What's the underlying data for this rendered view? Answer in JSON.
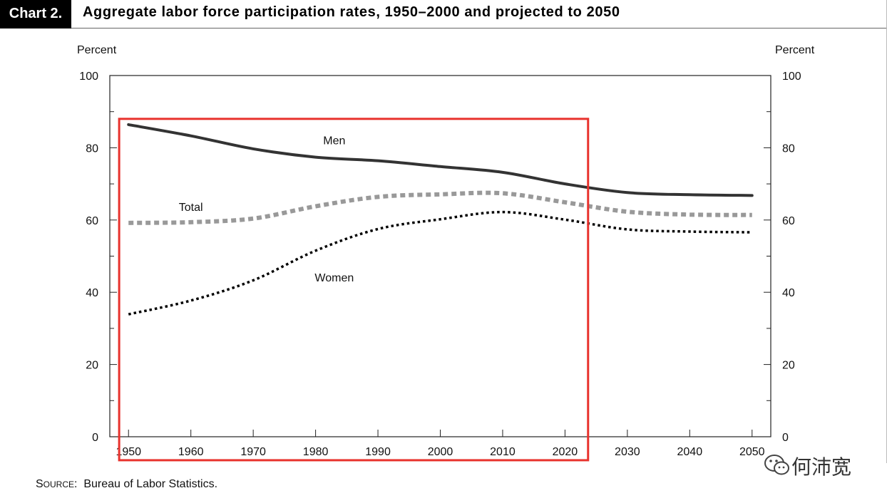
{
  "header": {
    "chart_label": "Chart 2.",
    "title": "Aggregate labor force participation rates, 1950–2000 and projected to 2050"
  },
  "source": {
    "label_first": "S",
    "label_rest": "OURCE",
    "colon": ":",
    "text": "Bureau of Labor Statistics."
  },
  "watermark": {
    "text": "何沛宽",
    "icon": "wechat-icon"
  },
  "chart_data": {
    "type": "line",
    "title": "Aggregate labor force participation rates, 1950–2000 and projected to 2050",
    "ylabel_left": "Percent",
    "ylabel_right": "Percent",
    "xlabel": "",
    "x": [
      1950,
      1960,
      1970,
      1980,
      1990,
      2000,
      2010,
      2020,
      2030,
      2040,
      2050
    ],
    "x_tick_labels": [
      "1950",
      "1960",
      "1970",
      "1980",
      "1990",
      "2000",
      "2010",
      "2020",
      "2030",
      "2040",
      "2050"
    ],
    "xlim": [
      1947,
      2053
    ],
    "ylim": [
      0,
      100
    ],
    "y_ticks": [
      0,
      20,
      40,
      60,
      80,
      100
    ],
    "y_tick_labels": [
      "0",
      "20",
      "40",
      "60",
      "80",
      "100"
    ],
    "series": [
      {
        "name": "Men",
        "style": "solid",
        "color": "#333333",
        "values": [
          86.4,
          83.3,
          79.7,
          77.4,
          76.4,
          74.8,
          73.2,
          70.0,
          67.6,
          67.0,
          66.8
        ]
      },
      {
        "name": "Total",
        "style": "dashed",
        "color": "#999999",
        "values": [
          59.2,
          59.4,
          60.4,
          63.8,
          66.4,
          67.1,
          67.4,
          64.9,
          62.3,
          61.5,
          61.4
        ]
      },
      {
        "name": "Women",
        "style": "dotted",
        "color": "#000000",
        "values": [
          33.9,
          37.7,
          43.3,
          51.5,
          57.5,
          60.2,
          62.2,
          60.1,
          57.4,
          56.8,
          56.6
        ]
      }
    ],
    "highlight_box": {
      "x_from": 1948.5,
      "x_to": 2023.7,
      "y_from": 88,
      "y_to": -6.5,
      "color": "#e8322d"
    },
    "grid": false,
    "legend": "inline-labels"
  }
}
